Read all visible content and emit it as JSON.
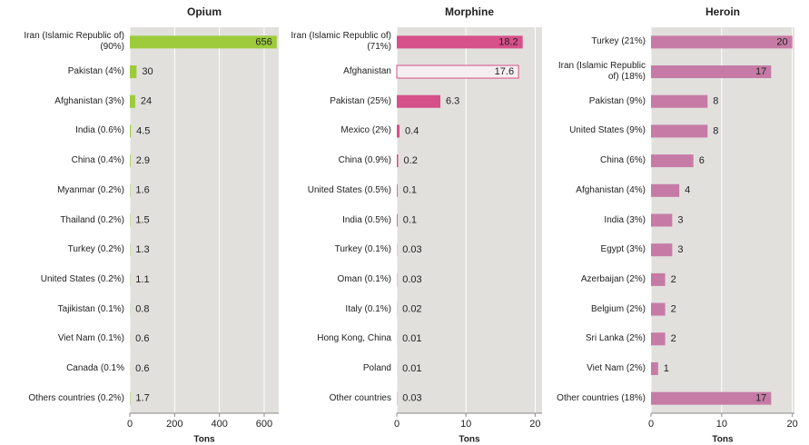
{
  "chart_data": [
    {
      "type": "bar",
      "title": "Opium",
      "x_label": "Tons",
      "color": "#9dcb3b",
      "grid": true,
      "categories": [
        "Iran (Islamic Republic of) (90%)",
        "Pakistan (4%)",
        "Afghanistan (3%)",
        "India (0.6%)",
        "China (0.4%)",
        "Myanmar (0.2%)",
        "Thailand (0.2%)",
        "Turkey (0.2%)",
        "United States (0.2%)",
        "Tajikistan (0.1%)",
        "Viet Nam (0.1%)",
        "Canada (0.1%",
        "Others countries (0.2%)"
      ],
      "values": [
        656,
        30,
        24,
        4.5,
        2.9,
        1.6,
        1.5,
        1.3,
        1.1,
        0.8,
        0.6,
        0.6,
        1.7
      ],
      "xlim": [
        0,
        665
      ],
      "xticks": [
        0,
        200,
        400,
        600
      ]
    },
    {
      "type": "bar",
      "title": "Morphine",
      "x_label": "Tons",
      "color": "#d6508a",
      "grid": true,
      "outline_indices": [
        1
      ],
      "categories": [
        "Iran (Islamic Republic of) (71%)",
        "Afghanistan",
        "Pakistan (25%)",
        "Mexico (2%)",
        "China (0.9%)",
        "United States (0.5%)",
        "India (0.5%)",
        "Turkey (0.1%)",
        "Oman (0.1%)",
        "Italy (0.1%)",
        "Hong Kong, China",
        "Poland",
        "Other countries"
      ],
      "values": [
        18.2,
        17.6,
        6.3,
        0.4,
        0.2,
        0.1,
        0.1,
        0.03,
        0.03,
        0.02,
        0.01,
        0.01,
        0.03
      ],
      "xlim": [
        0,
        21
      ],
      "xticks": [
        0,
        10,
        20
      ]
    },
    {
      "type": "bar",
      "title": "Heroin",
      "x_label": "Tons",
      "color": "#c67ba6",
      "grid": true,
      "categories": [
        "Turkey (21%)",
        "Iran (Islamic Republic of) (18%)",
        "Pakistan (9%)",
        "United States (9%)",
        "China (6%)",
        "Afghanistan (4%)",
        "India (3%)",
        "Egypt (3%)",
        "Azerbaijan (2%)",
        "Belgium (2%)",
        "Sri Lanka (2%)",
        "Viet Nam (2%)",
        "Other countries (18%)"
      ],
      "values": [
        20,
        17,
        8,
        8,
        6,
        4,
        3,
        3,
        2,
        2,
        2,
        1,
        17
      ],
      "xlim": [
        0,
        20.3
      ],
      "xticks": [
        0,
        10,
        20
      ]
    }
  ]
}
